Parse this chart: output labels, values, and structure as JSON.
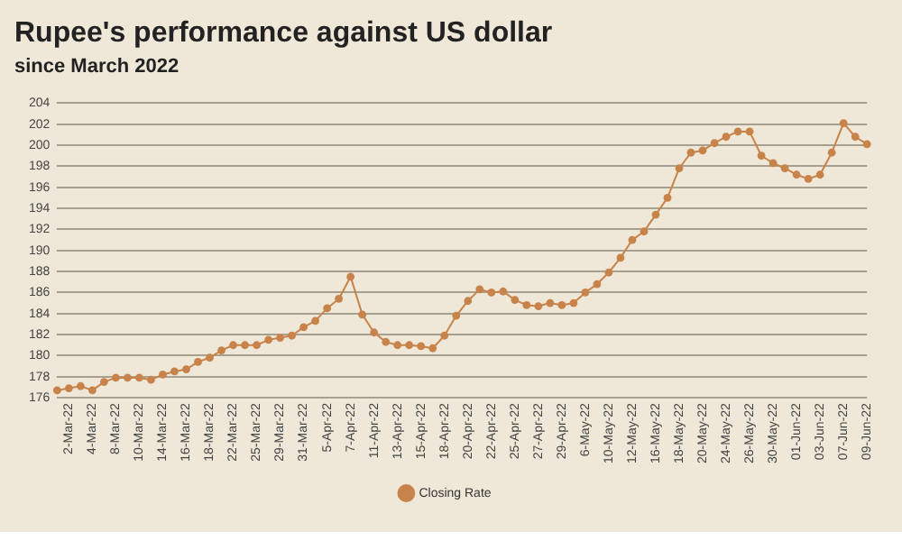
{
  "chart_data": {
    "type": "line",
    "title": "Rupee's performance against US dollar",
    "subtitle": "since March 2022",
    "categories": [
      null,
      "2-Mar-22",
      null,
      "4-Mar-22",
      null,
      "8-Mar-22",
      null,
      "10-Mar-22",
      null,
      "14-Mar-22",
      null,
      "16-Mar-22",
      null,
      "18-Mar-22",
      null,
      "22-Mar-22",
      null,
      "25-Mar-22",
      null,
      "29-Mar-22",
      null,
      "31-Mar-22",
      null,
      "5-Apr-22",
      null,
      "7-Apr-22",
      null,
      "11-Apr-22",
      null,
      "13-Apr-22",
      null,
      "15-Apr-22",
      null,
      "18-Apr-22",
      null,
      "20-Apr-22",
      null,
      "22-Apr-22",
      null,
      "25-Apr-22",
      null,
      "27-Apr-22",
      null,
      "29-Apr-22",
      null,
      "6-May-22",
      null,
      "10-May-22",
      null,
      "12-May-22",
      null,
      "16-May-22",
      null,
      "18-May-22",
      null,
      "20-May-22",
      null,
      "24-May-22",
      null,
      "26-May-22",
      null,
      "30-May-22",
      null,
      "01-Jun-22",
      null,
      "03-Jun-22",
      null,
      "07-Jun-22",
      null,
      "09-Jun-22"
    ],
    "series": [
      {
        "name": "Closing Rate",
        "color": "#c8834a",
        "values": [
          176.7,
          176.9,
          177.1,
          176.7,
          177.5,
          177.9,
          177.9,
          177.9,
          177.7,
          178.2,
          178.5,
          178.7,
          179.4,
          179.8,
          180.5,
          181.0,
          181.0,
          181.0,
          181.5,
          181.7,
          181.9,
          182.7,
          183.3,
          184.5,
          185.4,
          187.5,
          183.9,
          182.2,
          181.3,
          181.0,
          181.0,
          180.9,
          180.7,
          181.9,
          183.8,
          185.2,
          186.3,
          186.0,
          186.1,
          185.3,
          184.8,
          184.7,
          185.0,
          184.8,
          185.0,
          186.0,
          186.8,
          187.9,
          189.3,
          191.0,
          191.8,
          193.4,
          195.0,
          197.8,
          199.3,
          199.5,
          200.2,
          200.8,
          201.3,
          201.3,
          199.0,
          198.3,
          197.8,
          197.2,
          196.8,
          197.2,
          199.3,
          202.1,
          200.8,
          200.1
        ]
      }
    ],
    "ylim": [
      176,
      204
    ],
    "yticks": [
      176,
      178,
      180,
      182,
      184,
      186,
      188,
      190,
      192,
      194,
      196,
      198,
      200,
      202,
      204
    ],
    "grid": "y",
    "legend": "bottom",
    "marker": "circle",
    "line_style": "solid"
  }
}
